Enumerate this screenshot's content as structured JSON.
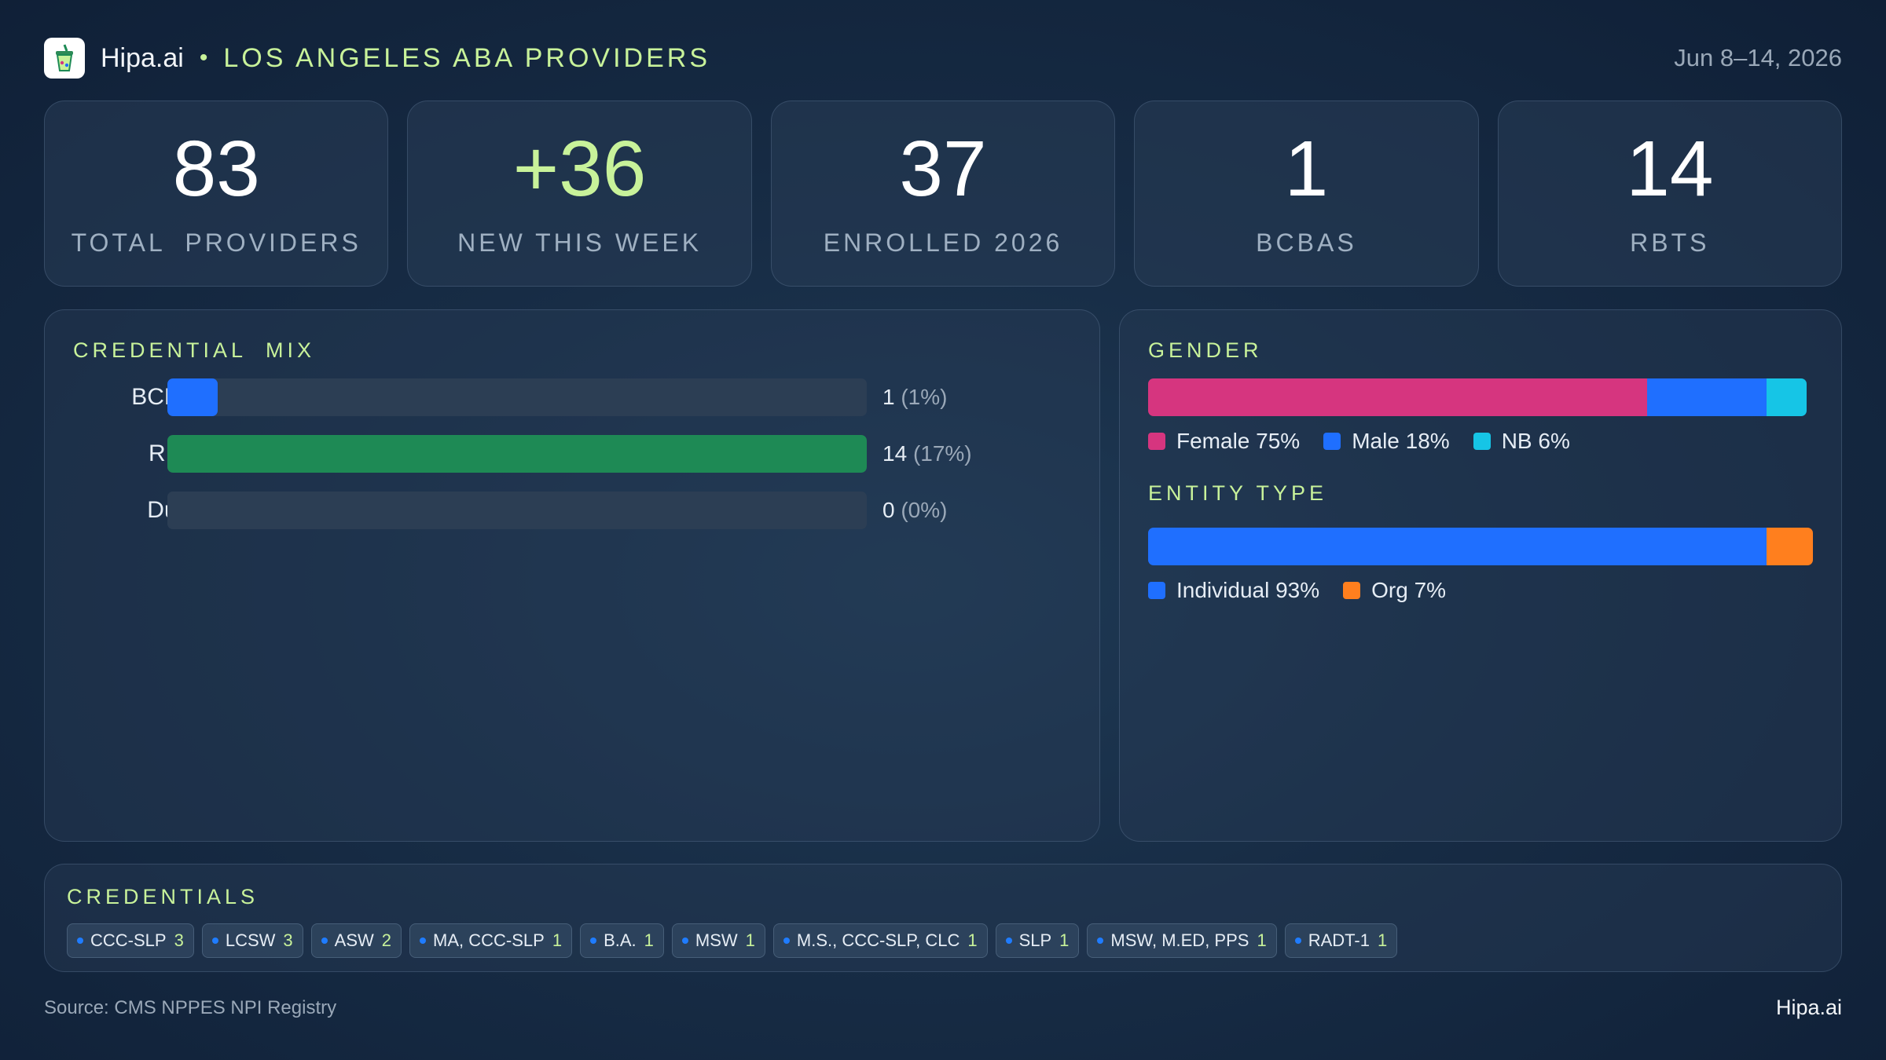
{
  "header": {
    "brand": "Hipa.ai",
    "separator": "•",
    "region": "LOS ANGELES ABA PROVIDERS",
    "date_range": "Jun 8–14, 2026",
    "logo_icon": "drink-cup-icon"
  },
  "stats": [
    {
      "value": "83",
      "label": "TOTAL  PROVIDERS"
    },
    {
      "value": "+36",
      "label": "NEW THIS WEEK"
    },
    {
      "value": "37",
      "label": "ENROLLED 2026"
    },
    {
      "value": "1",
      "label": "BCBAS"
    },
    {
      "value": "14",
      "label": "RBTS"
    }
  ],
  "credential_mix": {
    "title": "CREDENTIAL  MIX"
  },
  "gender": {
    "title": "GENDER"
  },
  "entity_type": {
    "title": "ENTITY TYPE"
  },
  "credentials": {
    "title": "CREDENTIALS",
    "chips": [
      {
        "label": "CCC-SLP",
        "count": "3"
      },
      {
        "label": "LCSW",
        "count": "3"
      },
      {
        "label": "ASW",
        "count": "2"
      },
      {
        "label": "MA, CCC-SLP",
        "count": "1"
      },
      {
        "label": "B.A.",
        "count": "1"
      },
      {
        "label": "MSW",
        "count": "1"
      },
      {
        "label": "M.S., CCC-SLP, CLC",
        "count": "1"
      },
      {
        "label": "SLP",
        "count": "1"
      },
      {
        "label": "MSW, M.ED, PPS",
        "count": "1"
      },
      {
        "label": "RADT-1",
        "count": "1"
      }
    ]
  },
  "footer": {
    "source": "Source: CMS NPPES NPI Registry",
    "brand": "Hipa.ai"
  },
  "colors": {
    "accent": "#c8f29a",
    "blue": "#1f6fff",
    "green": "#1e8a55",
    "pink": "#d6357f",
    "cyan": "#16c5e6",
    "orange": "#ff7f1e"
  },
  "chart_data": [
    {
      "type": "bar",
      "orientation": "horizontal",
      "title": "CREDENTIAL  MIX",
      "categories": [
        "BCBA",
        "RBT",
        "Dual"
      ],
      "values": [
        1,
        14,
        0
      ],
      "value_labels": [
        "1",
        "14",
        "0"
      ],
      "percent_labels": [
        "(1%)",
        "(17%)",
        "(0%)"
      ],
      "xlim": [
        0,
        14
      ],
      "bar_colors": [
        "#1f6fff",
        "#1e8a55",
        "#1f6fff"
      ]
    },
    {
      "type": "bar",
      "stacked": true,
      "title": "GENDER",
      "series": [
        {
          "name": "Female",
          "label": "Female 75%",
          "value": 75,
          "color": "#d6357f"
        },
        {
          "name": "Male",
          "label": "Male 18%",
          "value": 18,
          "color": "#1f6fff"
        },
        {
          "name": "NB",
          "label": "NB 6%",
          "value": 6,
          "color": "#16c5e6"
        }
      ]
    },
    {
      "type": "bar",
      "stacked": true,
      "title": "ENTITY TYPE",
      "series": [
        {
          "name": "Individual",
          "label": "Individual 93%",
          "value": 93,
          "color": "#1f6fff"
        },
        {
          "name": "Org",
          "label": "Org 7%",
          "value": 7,
          "color": "#ff7f1e"
        }
      ]
    }
  ]
}
